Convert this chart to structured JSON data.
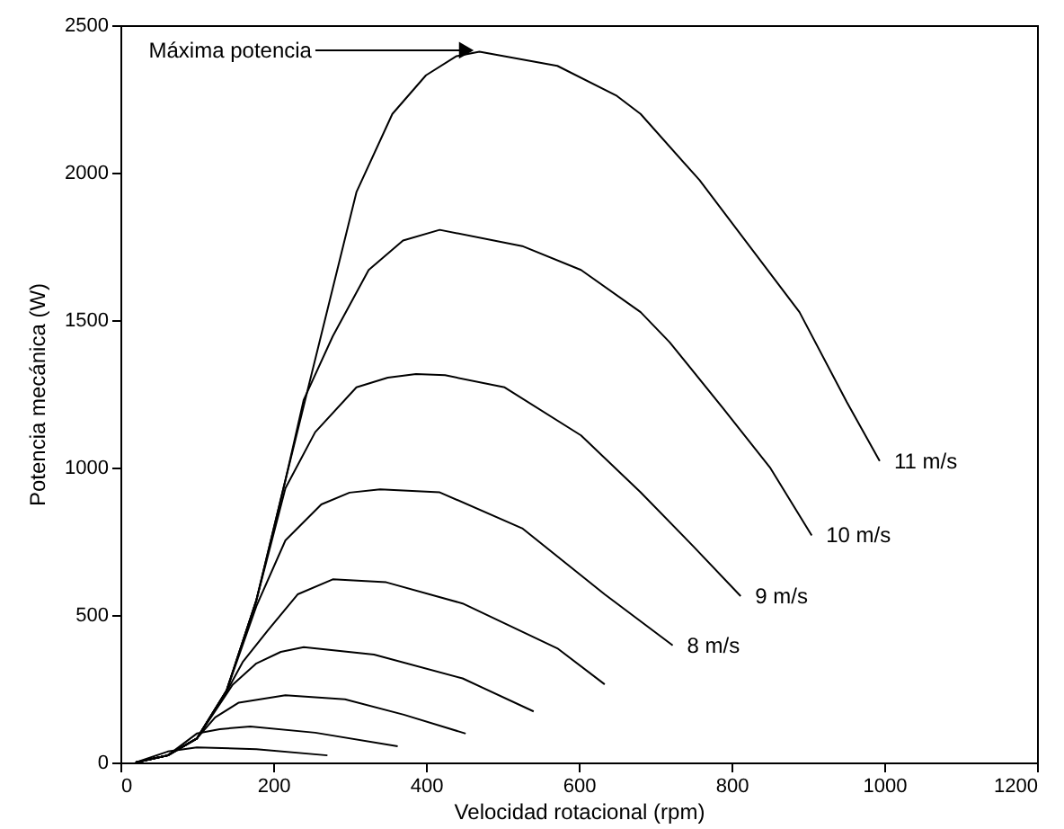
{
  "chart_data": {
    "type": "line",
    "xlabel": "Velocidad rotacional (rpm)",
    "ylabel": "Potencia mecánica (W)",
    "xlim": [
      0,
      1200
    ],
    "xticks": [
      0,
      200,
      400,
      600,
      800,
      1000,
      1200
    ],
    "ylim": [
      0,
      2500
    ],
    "yticks": [
      0,
      500,
      1000,
      1500,
      2000,
      2500
    ],
    "grid": false,
    "marker": "none",
    "line_style": "solid",
    "annotations": [
      {
        "text": "Máxima potencia",
        "x": 467,
        "y": 2415
      }
    ],
    "series": [
      {
        "name": "11 m/s",
        "color": "#000000",
        "x": [
          20,
          62,
          100,
          139,
          178,
          216,
          247,
          278,
          309,
          356,
          400,
          440,
          470,
          572,
          650,
          681,
          758,
          889,
          951,
          994
        ],
        "values": [
          0,
          24,
          81,
          244,
          550,
          957,
          1283,
          1608,
          1934,
          2199,
          2330,
          2395,
          2410,
          2362,
          2260,
          2199,
          1975,
          1527,
          1222,
          1022
        ]
      },
      {
        "name": "10 m/s",
        "color": "#000000",
        "x": [
          20,
          62,
          100,
          139,
          178,
          216,
          240,
          278,
          325,
          370,
          418,
          526,
          603,
          681,
          719,
          789,
          851,
          905
        ],
        "values": [
          0,
          24,
          81,
          244,
          550,
          957,
          1230,
          1445,
          1670,
          1770,
          1806,
          1751,
          1670,
          1527,
          1425,
          1201,
          998,
          770
        ]
      },
      {
        "name": "9 m/s",
        "color": "#000000",
        "x": [
          20,
          62,
          100,
          139,
          178,
          216,
          255,
          309,
          350,
          387,
          425,
          503,
          603,
          681,
          750,
          812
        ],
        "values": [
          0,
          24,
          81,
          244,
          550,
          930,
          1120,
          1272,
          1305,
          1317,
          1313,
          1272,
          1109,
          916,
          733,
          564
        ]
      },
      {
        "name": "8 m/s",
        "color": "#000000",
        "x": [
          20,
          62,
          100,
          139,
          178,
          216,
          263,
          300,
          340,
          418,
          526,
          634,
          723
        ],
        "values": [
          0,
          24,
          81,
          244,
          530,
          753,
          875,
          915,
          926,
          916,
          794,
          570,
          397
        ]
      },
      {
        "color": "#000000",
        "x": [
          20,
          62,
          100,
          139,
          160,
          193,
          232,
          278,
          348,
          448,
          572,
          634
        ],
        "values": [
          0,
          24,
          81,
          240,
          340,
          448,
          570,
          621,
          611,
          539,
          387,
          265
        ]
      },
      {
        "color": "#000000",
        "x": [
          20,
          62,
          100,
          147,
          178,
          210,
          240,
          332,
          448,
          541
        ],
        "values": [
          0,
          24,
          81,
          264,
          336,
          375,
          391,
          366,
          285,
          173
        ]
      },
      {
        "color": "#000000",
        "x": [
          20,
          62,
          100,
          124,
          155,
          216,
          294,
          371,
          452
        ],
        "values": [
          0,
          24,
          81,
          153,
          203,
          228,
          214,
          162,
          98
        ]
      },
      {
        "color": "#000000",
        "x": [
          20,
          62,
          100,
          130,
          170,
          255,
          363
        ],
        "values": [
          0,
          24,
          98,
          113,
          122,
          101,
          55
        ]
      },
      {
        "color": "#000000",
        "x": [
          20,
          62,
          100,
          178,
          271
        ],
        "values": [
          0,
          37,
          51,
          45,
          24
        ]
      }
    ]
  }
}
